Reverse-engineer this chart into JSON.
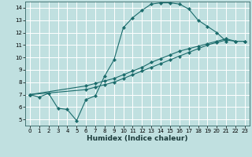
{
  "xlabel": "Humidex (Indice chaleur)",
  "background_color": "#c0e0e0",
  "grid_color": "#ffffff",
  "line_color": "#1a6b6b",
  "xlim": [
    -0.5,
    23.5
  ],
  "ylim": [
    4.5,
    14.5
  ],
  "xticks": [
    0,
    1,
    2,
    3,
    4,
    5,
    6,
    7,
    8,
    9,
    10,
    11,
    12,
    13,
    14,
    15,
    16,
    17,
    18,
    19,
    20,
    21,
    22,
    23
  ],
  "yticks": [
    5,
    6,
    7,
    8,
    9,
    10,
    11,
    12,
    13,
    14
  ],
  "curve1": [
    [
      0,
      7.0
    ],
    [
      1,
      6.8
    ],
    [
      2,
      7.1
    ],
    [
      3,
      5.9
    ],
    [
      4,
      5.8
    ],
    [
      5,
      4.9
    ],
    [
      6,
      6.6
    ],
    [
      7,
      6.9
    ],
    [
      8,
      8.5
    ],
    [
      9,
      9.8
    ],
    [
      10,
      12.4
    ],
    [
      11,
      13.2
    ],
    [
      12,
      13.8
    ],
    [
      13,
      14.3
    ],
    [
      14,
      14.4
    ],
    [
      15,
      14.4
    ],
    [
      16,
      14.3
    ],
    [
      17,
      13.9
    ],
    [
      18,
      13.0
    ],
    [
      19,
      12.5
    ],
    [
      20,
      12.0
    ],
    [
      21,
      11.3
    ]
  ],
  "curve2": [
    [
      0,
      7.0
    ],
    [
      6,
      7.7
    ],
    [
      7,
      7.9
    ],
    [
      8,
      8.1
    ],
    [
      9,
      8.3
    ],
    [
      10,
      8.6
    ],
    [
      11,
      8.9
    ],
    [
      12,
      9.2
    ],
    [
      13,
      9.6
    ],
    [
      14,
      9.9
    ],
    [
      15,
      10.2
    ],
    [
      16,
      10.5
    ],
    [
      17,
      10.7
    ],
    [
      18,
      10.9
    ],
    [
      19,
      11.1
    ],
    [
      20,
      11.3
    ],
    [
      21,
      11.5
    ],
    [
      22,
      11.3
    ],
    [
      23,
      11.3
    ]
  ],
  "curve3": [
    [
      0,
      7.0
    ],
    [
      6,
      7.4
    ],
    [
      7,
      7.6
    ],
    [
      8,
      7.8
    ],
    [
      9,
      8.0
    ],
    [
      10,
      8.3
    ],
    [
      11,
      8.6
    ],
    [
      12,
      8.9
    ],
    [
      13,
      9.2
    ],
    [
      14,
      9.5
    ],
    [
      15,
      9.8
    ],
    [
      16,
      10.1
    ],
    [
      17,
      10.4
    ],
    [
      18,
      10.7
    ],
    [
      19,
      11.0
    ],
    [
      20,
      11.2
    ],
    [
      21,
      11.4
    ],
    [
      22,
      11.3
    ],
    [
      23,
      11.3
    ]
  ]
}
